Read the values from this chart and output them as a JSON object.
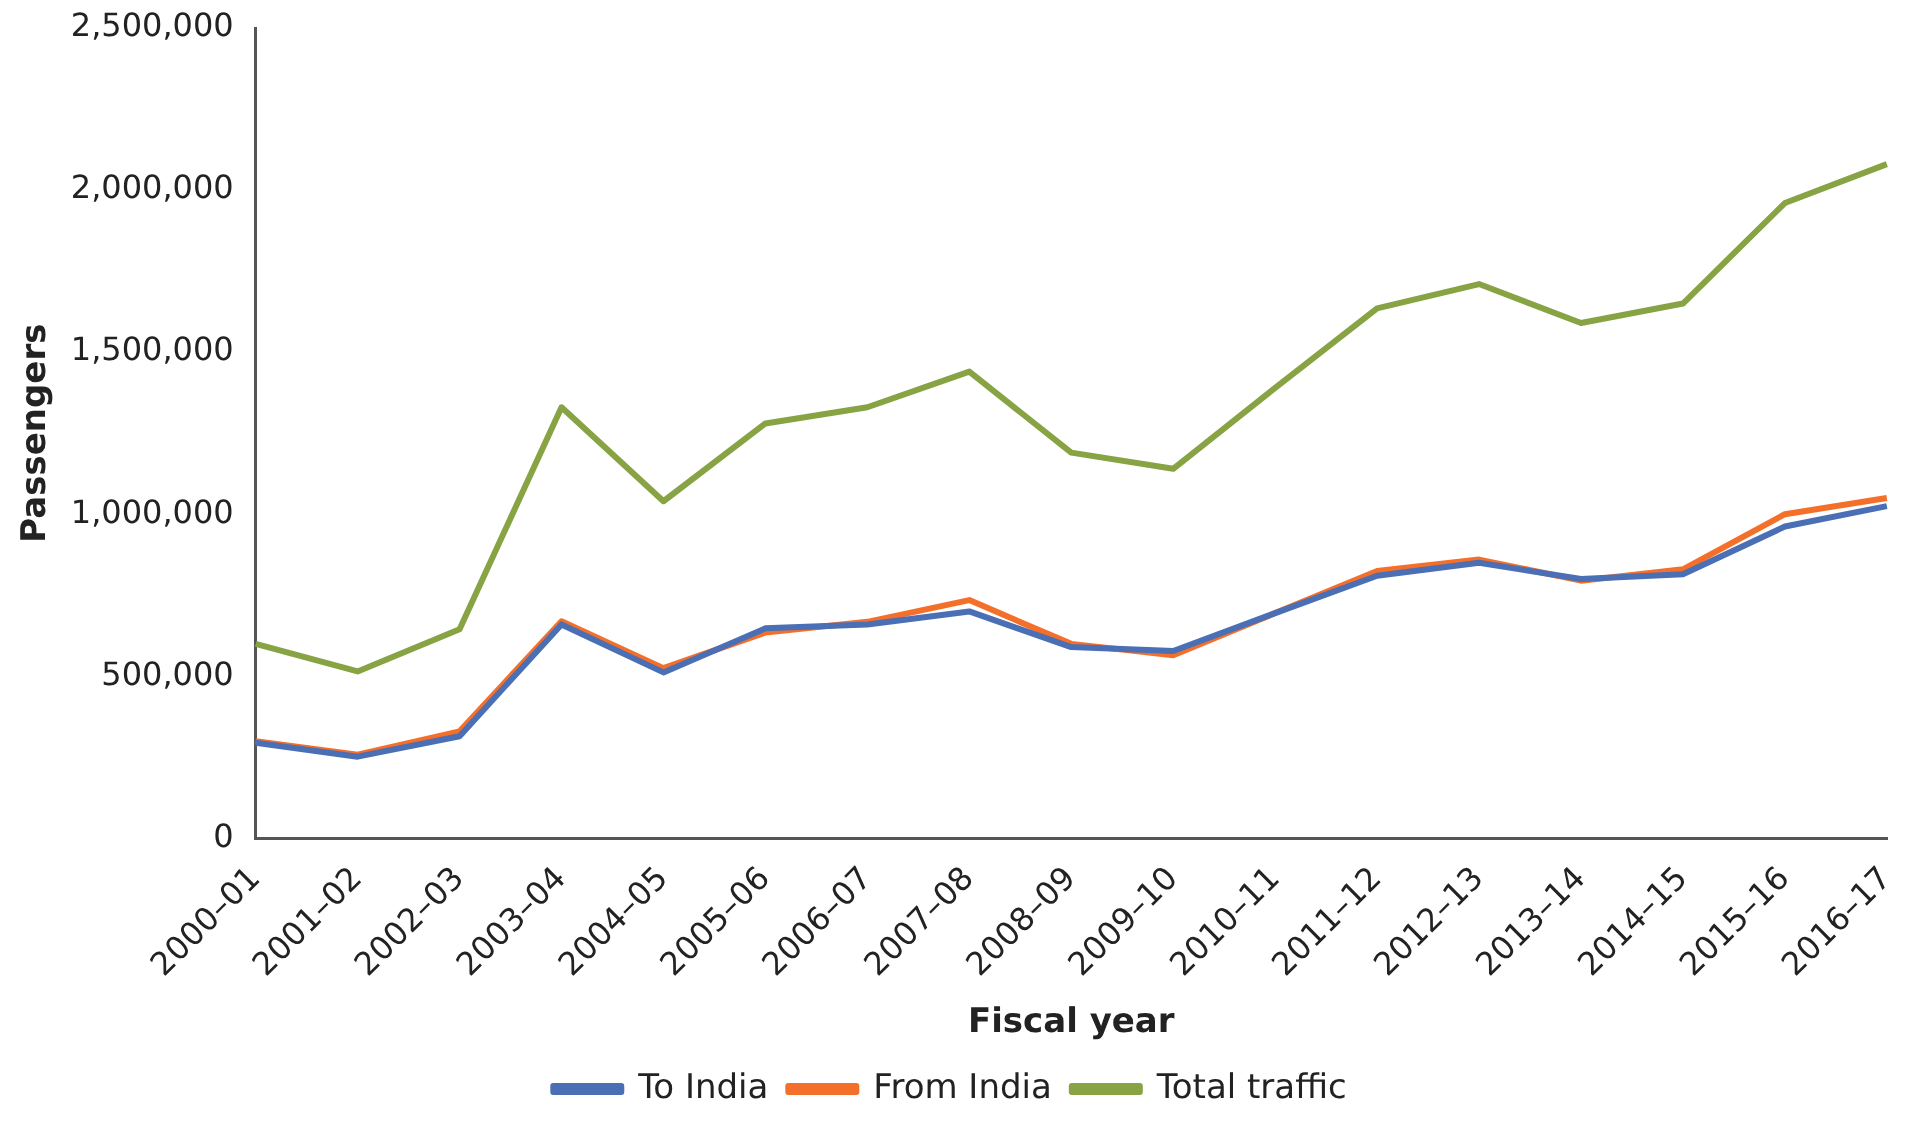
{
  "chart_data": {
    "type": "line",
    "xlabel": "Fiscal year",
    "ylabel": "Passengers",
    "categories": [
      "2000–01",
      "2001–02",
      "2002–03",
      "2003–04",
      "2004–05",
      "2005–06",
      "2006–07",
      "2007–08",
      "2008–09",
      "2009–10",
      "2010–11",
      "2011–12",
      "2012–13",
      "2013–14",
      "2014–15",
      "2015–16",
      "2016–17"
    ],
    "series": [
      {
        "name": "To India",
        "color": "#4a6fb5",
        "values": [
          295000,
          252000,
          315000,
          660000,
          512000,
          648000,
          660000,
          700000,
          590000,
          578000,
          695000,
          810000,
          850000,
          800000,
          815000,
          962000,
          1025000
        ]
      },
      {
        "name": "From India",
        "color": "#f4702a",
        "values": [
          300000,
          258000,
          330000,
          670000,
          525000,
          635000,
          668000,
          735000,
          600000,
          565000,
          695000,
          825000,
          860000,
          795000,
          830000,
          1000000,
          1050000
        ]
      },
      {
        "name": "Total traffic",
        "color": "#88a343",
        "values": [
          600000,
          515000,
          645000,
          1330000,
          1040000,
          1280000,
          1330000,
          1440000,
          1190000,
          1140000,
          1390000,
          1635000,
          1710000,
          1590000,
          1650000,
          1960000,
          2080000
        ]
      }
    ],
    "ylim": [
      0,
      2500000
    ],
    "yticks": [
      0,
      {
        "value": 500000,
        "label": "500,000"
      },
      {
        "value": 1000000,
        "label": "1,000,000"
      },
      {
        "value": 1500000,
        "label": "1,500,000"
      },
      {
        "value": 2000000,
        "label": "2,000,000"
      },
      {
        "value": 2500000,
        "label": "2,500,000"
      }
    ],
    "grid": false,
    "legend": "bottom",
    "marker": "none",
    "line_style": "solid"
  }
}
